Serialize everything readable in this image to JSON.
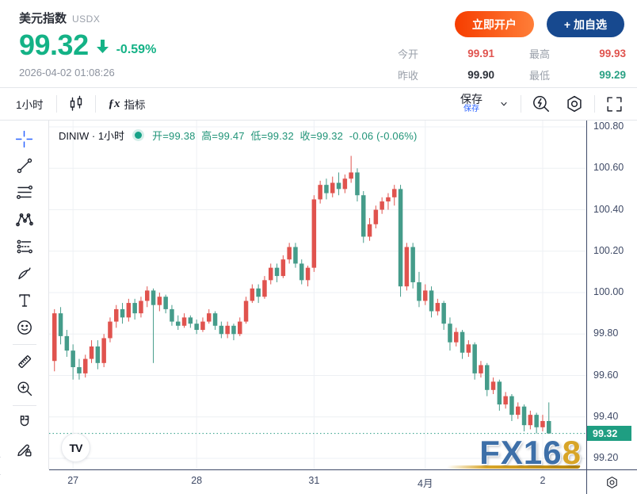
{
  "colors": {
    "accent_green": "#14b286",
    "candle_up": "#e0534e",
    "candle_down": "#459c8a",
    "value_red": "#e0534e",
    "value_green": "#2aa184",
    "axis_text": "#3f4a66",
    "price_line": "#2a9d84",
    "crosshair_blue": "#2962ff",
    "price_tag_bg": "#1f9e82"
  },
  "header": {
    "title": "美元指数",
    "symbol": "USDX",
    "price": "99.32",
    "change_pct": "-0.59%",
    "datetime": "2026-04-02 01:08:26",
    "open_account_button": "立即开户",
    "add_watchlist_button": "+ 加自选",
    "stats": {
      "open": {
        "label": "今开",
        "value": "99.91"
      },
      "prev_close": {
        "label": "昨收",
        "value": "99.90"
      },
      "high": {
        "label": "最高",
        "value": "99.93"
      },
      "low": {
        "label": "最低",
        "value": "99.29"
      }
    }
  },
  "toolbar": {
    "interval": "1小时",
    "fx_glyph": "ƒx",
    "indicators": "指标",
    "save": "保存",
    "save_tooltip": "保存"
  },
  "chart": {
    "legend": {
      "series": "DINIW · 1小时",
      "open": "开=99.38",
      "high": "高=99.47",
      "low": "低=99.32",
      "close": "收=99.32",
      "change": "-0.06 (-0.06%)"
    },
    "price_label": "99.32",
    "tv_logo": "TV",
    "watermark_main": "FX16",
    "watermark_accent": "8",
    "collapse_glyph": "‹"
  },
  "chart_data": {
    "type": "candlestick",
    "symbol": "DINIW",
    "interval": "1小时",
    "title": "美元指数 USDX 1小时",
    "ylim": [
      99.15,
      100.83
    ],
    "y_ticks": [
      100.8,
      100.6,
      100.4,
      100.2,
      100.0,
      99.8,
      99.6,
      99.4,
      99.2
    ],
    "x_ticks": [
      {
        "label": "27",
        "index": 3
      },
      {
        "label": "28",
        "index": 23
      },
      {
        "label": "31",
        "index": 42
      },
      {
        "label": "4月",
        "index": 60
      },
      {
        "label": "2",
        "index": 79
      }
    ],
    "current_price": 99.32,
    "last_candle": {
      "open": 99.38,
      "high": 99.47,
      "low": 99.32,
      "close": 99.32,
      "change": -0.06,
      "change_pct": "-0.06%"
    },
    "up_color": "#e0534e",
    "down_color": "#459c8a",
    "grid": true,
    "ohlc": [
      [
        99.67,
        99.92,
        99.62,
        99.9
      ],
      [
        99.9,
        99.93,
        99.75,
        99.79
      ],
      [
        99.79,
        99.82,
        99.69,
        99.72
      ],
      [
        99.72,
        99.75,
        99.58,
        99.64
      ],
      [
        99.64,
        99.68,
        99.58,
        99.61
      ],
      [
        99.61,
        99.7,
        99.59,
        99.68
      ],
      [
        99.68,
        99.77,
        99.66,
        99.74
      ],
      [
        99.74,
        99.77,
        99.63,
        99.66
      ],
      [
        99.66,
        99.8,
        99.64,
        99.78
      ],
      [
        99.78,
        99.88,
        99.76,
        99.86
      ],
      [
        99.86,
        99.94,
        99.83,
        99.92
      ],
      [
        99.92,
        99.95,
        99.85,
        99.88
      ],
      [
        99.88,
        99.97,
        99.86,
        99.95
      ],
      [
        99.95,
        99.97,
        99.87,
        99.9
      ],
      [
        99.9,
        99.98,
        99.88,
        99.96
      ],
      [
        99.96,
        100.03,
        99.93,
        100.01
      ],
      [
        100.01,
        100.02,
        99.66,
        99.94
      ],
      [
        99.94,
        100.0,
        99.91,
        99.98
      ],
      [
        99.98,
        99.99,
        99.9,
        99.92
      ],
      [
        99.92,
        99.94,
        99.84,
        99.86
      ],
      [
        99.86,
        99.89,
        99.82,
        99.84
      ],
      [
        99.84,
        99.9,
        99.83,
        99.88
      ],
      [
        99.88,
        99.89,
        99.83,
        99.85
      ],
      [
        99.85,
        99.87,
        99.8,
        99.82
      ],
      [
        99.82,
        99.88,
        99.81,
        99.86
      ],
      [
        99.86,
        99.92,
        99.85,
        99.9
      ],
      [
        99.9,
        99.91,
        99.82,
        99.84
      ],
      [
        99.84,
        99.86,
        99.78,
        99.8
      ],
      [
        99.8,
        99.86,
        99.78,
        99.84
      ],
      [
        99.84,
        99.85,
        99.77,
        99.8
      ],
      [
        99.8,
        99.88,
        99.79,
        99.86
      ],
      [
        99.86,
        99.98,
        99.85,
        99.96
      ],
      [
        99.96,
        100.04,
        99.95,
        100.02
      ],
      [
        100.02,
        100.04,
        99.95,
        99.98
      ],
      [
        99.98,
        100.08,
        99.97,
        100.06
      ],
      [
        100.06,
        100.14,
        100.04,
        100.12
      ],
      [
        100.12,
        100.14,
        100.05,
        100.08
      ],
      [
        100.08,
        100.18,
        100.07,
        100.16
      ],
      [
        100.16,
        100.24,
        100.14,
        100.22
      ],
      [
        100.22,
        100.24,
        100.12,
        100.14
      ],
      [
        100.14,
        100.16,
        100.04,
        100.06
      ],
      [
        100.06,
        100.13,
        100.03,
        100.12
      ],
      [
        100.12,
        100.47,
        100.1,
        100.45
      ],
      [
        100.45,
        100.54,
        100.43,
        100.52
      ],
      [
        100.52,
        100.55,
        100.45,
        100.48
      ],
      [
        100.48,
        100.56,
        100.46,
        100.53
      ],
      [
        100.53,
        100.58,
        100.47,
        100.5
      ],
      [
        100.5,
        100.57,
        100.48,
        100.55
      ],
      [
        100.55,
        100.66,
        100.53,
        100.58
      ],
      [
        100.58,
        100.6,
        100.44,
        100.47
      ],
      [
        100.47,
        100.49,
        100.24,
        100.27
      ],
      [
        100.27,
        100.36,
        100.25,
        100.33
      ],
      [
        100.33,
        100.42,
        100.31,
        100.4
      ],
      [
        100.4,
        100.46,
        100.38,
        100.44
      ],
      [
        100.44,
        100.48,
        100.4,
        100.46
      ],
      [
        100.46,
        100.52,
        100.42,
        100.5
      ],
      [
        100.5,
        100.52,
        99.98,
        100.03
      ],
      [
        100.03,
        100.24,
        100.01,
        100.22
      ],
      [
        100.22,
        100.24,
        100.02,
        100.05
      ],
      [
        100.05,
        100.1,
        99.93,
        99.96
      ],
      [
        99.96,
        100.04,
        99.94,
        100.01
      ],
      [
        100.01,
        100.03,
        99.88,
        99.91
      ],
      [
        99.91,
        99.97,
        99.89,
        99.95
      ],
      [
        99.95,
        99.96,
        99.82,
        99.85
      ],
      [
        99.85,
        99.88,
        99.72,
        99.76
      ],
      [
        99.76,
        99.83,
        99.74,
        99.81
      ],
      [
        99.81,
        99.82,
        99.68,
        99.71
      ],
      [
        99.71,
        99.77,
        99.69,
        99.75
      ],
      [
        99.75,
        99.76,
        99.58,
        99.61
      ],
      [
        99.61,
        99.67,
        99.59,
        99.65
      ],
      [
        99.65,
        99.66,
        99.5,
        99.53
      ],
      [
        99.53,
        99.59,
        99.51,
        99.57
      ],
      [
        99.57,
        99.58,
        99.43,
        99.46
      ],
      [
        99.46,
        99.52,
        99.44,
        99.5
      ],
      [
        99.5,
        99.51,
        99.38,
        99.41
      ],
      [
        99.41,
        99.47,
        99.39,
        99.45
      ],
      [
        99.45,
        99.46,
        99.33,
        99.36
      ],
      [
        99.36,
        99.43,
        99.34,
        99.41
      ],
      [
        99.41,
        99.42,
        99.32,
        99.35
      ],
      [
        99.35,
        99.41,
        99.33,
        99.38
      ],
      [
        99.38,
        99.47,
        99.32,
        99.32
      ]
    ]
  }
}
